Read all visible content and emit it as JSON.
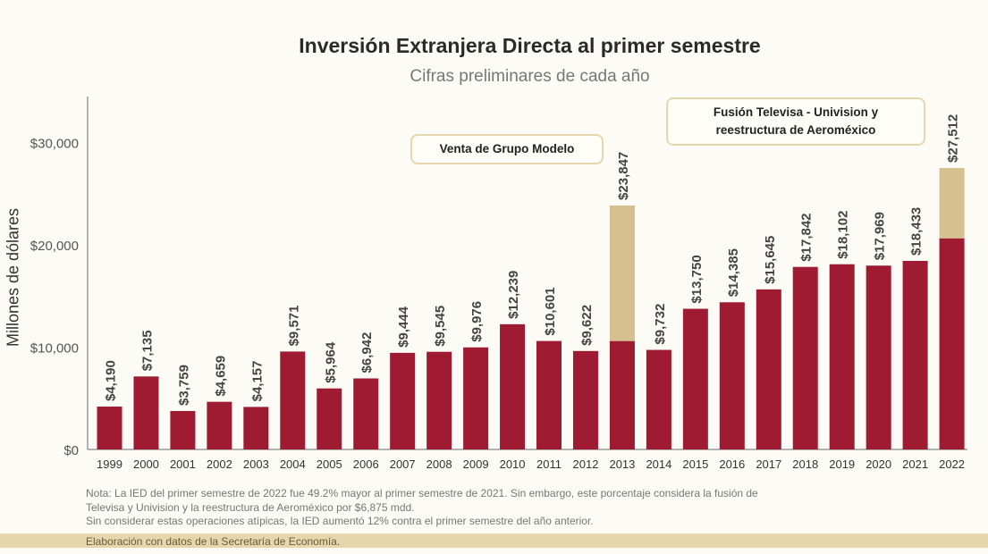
{
  "chart_data": {
    "type": "bar",
    "title": "Inversión Extranjera Directa al primer semestre",
    "subtitle": "Cifras preliminares de cada año",
    "ylabel": "Millones de dólares",
    "xlabel": "",
    "ylim": [
      0,
      34000
    ],
    "yticks": [
      "$0",
      "$10,000",
      "$20,000",
      "$30,000"
    ],
    "ytick_values": [
      0,
      10000,
      20000,
      30000
    ],
    "grid": false,
    "stacked": true,
    "categories": [
      "1999",
      "2000",
      "2001",
      "2002",
      "2003",
      "2004",
      "2005",
      "2006",
      "2007",
      "2008",
      "2009",
      "2010",
      "2011",
      "2012",
      "2013",
      "2014",
      "2015",
      "2016",
      "2017",
      "2018",
      "2019",
      "2020",
      "2021",
      "2022"
    ],
    "totals": [
      4190,
      7135,
      3759,
      4659,
      4157,
      9571,
      5964,
      6942,
      9444,
      9545,
      9976,
      12239,
      10601,
      9622,
      23847,
      9732,
      13750,
      14385,
      15645,
      17842,
      18102,
      17969,
      18433,
      27512
    ],
    "total_labels": [
      "$4,190",
      "$7,135",
      "$3,759",
      "$4,659",
      "$4,157",
      "$9,571",
      "$5,964",
      "$6,942",
      "$9,444",
      "$9,545",
      "$9,976",
      "$12,239",
      "$10,601",
      "$9,622",
      "$23,847",
      "$9,732",
      "$13,750",
      "$14,385",
      "$15,645",
      "$17,842",
      "$18,102",
      "$17,969",
      "$18,433",
      "$27,512"
    ],
    "series": [
      {
        "values": [
          4190,
          7135,
          3759,
          4659,
          4157,
          9571,
          5964,
          6942,
          9444,
          9545,
          9976,
          12239,
          10601,
          9622,
          10600,
          9732,
          13750,
          14385,
          15645,
          17842,
          18102,
          17969,
          18433,
          20637
        ],
        "color": "#9e1b32"
      },
      {
        "values": [
          0,
          0,
          0,
          0,
          0,
          0,
          0,
          0,
          0,
          0,
          0,
          0,
          0,
          0,
          13247,
          0,
          0,
          0,
          0,
          0,
          0,
          0,
          0,
          6875
        ],
        "color": "#d6c08f"
      }
    ],
    "annotations": [
      {
        "text": "Venta de Grupo Modelo",
        "category": "2013"
      },
      {
        "text": "Fusión Televisa - Univision y reestructura de Aeroméxico",
        "category": "2022"
      }
    ]
  },
  "note": [
    "Nota: La IED del primer semestre de 2022 fue 49.2% mayor al primer semestre de 2021. Sin embargo, este porcentaje considera la fusión de",
    "Televisa y Univision y la reestructura de Aeroméxico por $6,875 mdd.",
    "Sin considerar estas operaciones atípicas, la IED aumentó 12% contra el primer semestre del año anterior."
  ],
  "source": "Elaboración con datos de la Secretaría de Economía."
}
